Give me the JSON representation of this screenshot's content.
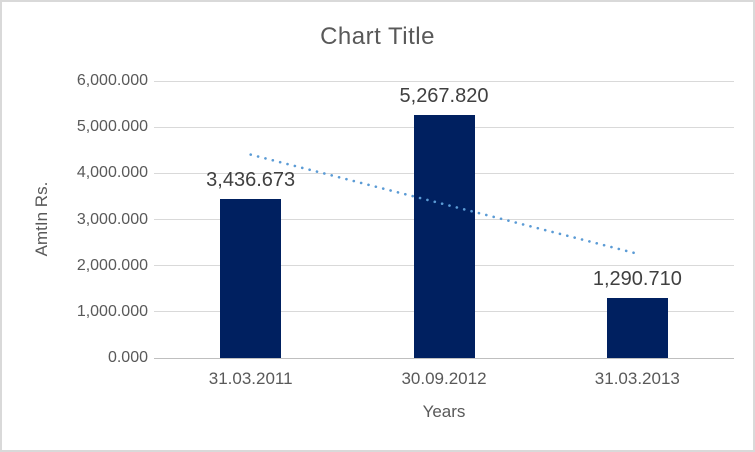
{
  "chart_data": {
    "type": "bar",
    "title": "Chart Title",
    "xlabel": "Years",
    "ylabel": "AmtIn Rs.",
    "categories": [
      "31.03.2011",
      "30.09.2012",
      "31.03.2013"
    ],
    "values": [
      3436.673,
      5267.82,
      1290.71
    ],
    "data_labels": [
      "3,436.673",
      "5,267.820",
      "1,290.710"
    ],
    "ylim": [
      0,
      6000
    ],
    "ytick_step": 1000,
    "ytick_labels": [
      "0.000",
      "1,000.000",
      "2,000.000",
      "3,000.000",
      "4,000.000",
      "5,000.000",
      "6,000.000"
    ],
    "grid": true,
    "legend": "none",
    "bar_color": "#002060",
    "trendline": {
      "type": "linear",
      "style": "dotted",
      "color": "#5B9BD5",
      "start_value": 4405,
      "end_value": 2259
    },
    "colors": {
      "grid": "#D9D9D9",
      "axis_line": "#BFBFBF",
      "text": "#595959",
      "data_label": "#404040",
      "border": "#D9D9D9",
      "background": "#FFFFFF"
    }
  }
}
